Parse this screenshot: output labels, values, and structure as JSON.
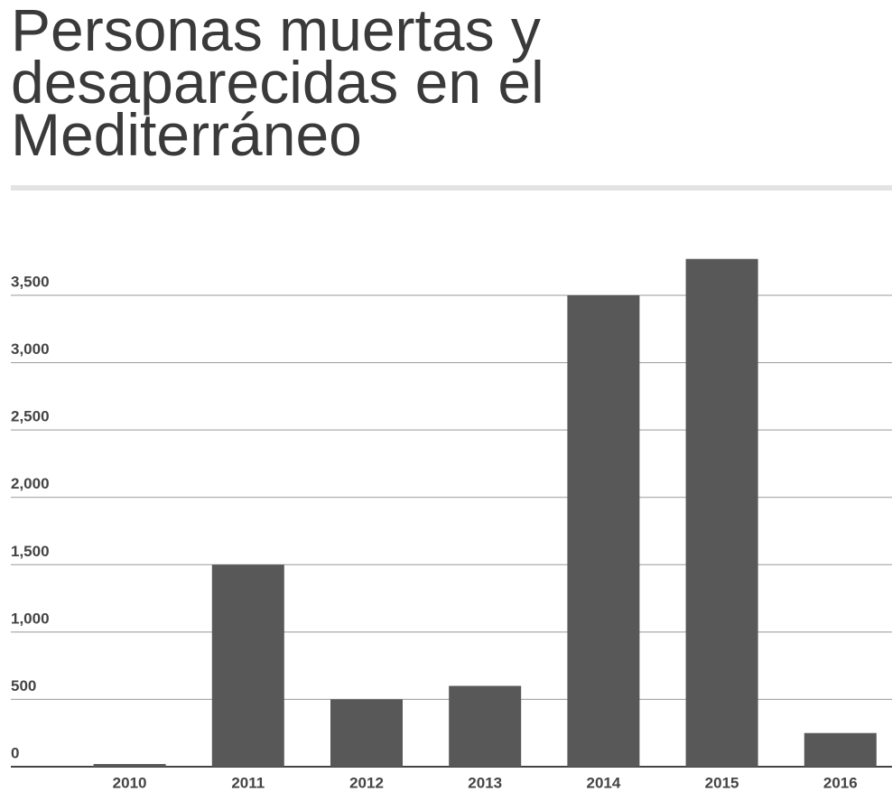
{
  "chart_data": {
    "type": "bar",
    "title": "Personas muertas y desaparecidas en el Mediterráneo",
    "categories": [
      "2010",
      "2011",
      "2012",
      "2013",
      "2014",
      "2015",
      "2016"
    ],
    "values": [
      20,
      1500,
      500,
      600,
      3500,
      3770,
      250
    ],
    "color": "#595858",
    "ylim": [
      0,
      3800
    ],
    "yticks": [
      0,
      500,
      {
        "value": 1000,
        "label": "1,000"
      },
      {
        "value": 1500,
        "label": "1,500"
      },
      {
        "value": 2000,
        "label": "2,000"
      },
      {
        "value": 2500,
        "label": "2,500"
      },
      {
        "value": 3000,
        "label": "3,000"
      },
      {
        "value": 3500,
        "label": "3,500"
      }
    ],
    "grid": true
  }
}
